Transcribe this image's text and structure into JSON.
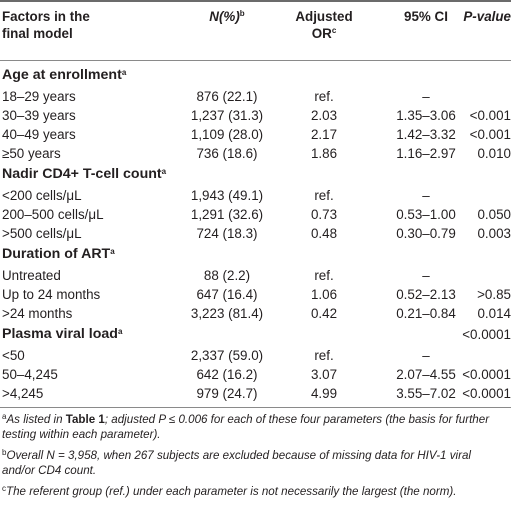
{
  "header": {
    "col0_line1": "Factors in the",
    "col0_line2": "final model",
    "col1": "N(%)",
    "col1_sup": "b",
    "col2_line1": "Adjusted",
    "col2_line2": "OR",
    "col2_sup": "c",
    "col3": "95% CI",
    "col4": "P-value"
  },
  "sections": [
    {
      "title": "Age at enrollment",
      "sup": "a",
      "p": "",
      "rows": [
        {
          "label": "18–29 years",
          "n": "876 (22.1)",
          "or": "ref.",
          "ci": "–",
          "p": ""
        },
        {
          "label": "30–39 years",
          "n": "1,237 (31.3)",
          "or": "2.03",
          "ci": "1.35–3.06",
          "p": "<0.001"
        },
        {
          "label": "40–49 years",
          "n": "1,109 (28.0)",
          "or": "2.17",
          "ci": "1.42–3.32",
          "p": "<0.001"
        },
        {
          "label": "≥50 years",
          "n": "736 (18.6)",
          "or": "1.86",
          "ci": "1.16–2.97",
          "p": "0.010"
        }
      ]
    },
    {
      "title": "Nadir CD4+ T-cell count",
      "sup": "a",
      "p": "",
      "rows": [
        {
          "label": "<200 cells/μL",
          "n": "1,943 (49.1)",
          "or": "ref.",
          "ci": "–",
          "p": ""
        },
        {
          "label": "200–500 cells/μL",
          "n": "1,291 (32.6)",
          "or": "0.73",
          "ci": "0.53–1.00",
          "p": "0.050"
        },
        {
          "label": ">500 cells/μL",
          "n": "724 (18.3)",
          "or": "0.48",
          "ci": "0.30–0.79",
          "p": "0.003"
        }
      ]
    },
    {
      "title": "Duration of ART",
      "sup": "a",
      "p": "",
      "rows": [
        {
          "label": "Untreated",
          "n": "88 (2.2)",
          "or": "ref.",
          "ci": "–",
          "p": ""
        },
        {
          "label": "Up to 24 months",
          "n": "647 (16.4)",
          "or": "1.06",
          "ci": "0.52–2.13",
          "p": ">0.85"
        },
        {
          "label": ">24 months",
          "n": "3,223 (81.4)",
          "or": "0.42",
          "ci": "0.21–0.84",
          "p": "0.014"
        }
      ]
    },
    {
      "title": "Plasma viral load",
      "sup": "a",
      "p": "<0.0001",
      "rows": [
        {
          "label": "<50",
          "n": "2,337 (59.0)",
          "or": "ref.",
          "ci": "–",
          "p": ""
        },
        {
          "label": "50–4,245",
          "n": "642 (16.2)",
          "or": "3.07",
          "ci": "2.07–4.55",
          "p": "<0.0001"
        },
        {
          "label": ">4,245",
          "n": "979 (24.7)",
          "or": "4.99",
          "ci": "3.55–7.02",
          "p": "<0.0001"
        }
      ]
    }
  ],
  "footnotes": {
    "a_marker": "a",
    "a_pre": "As listed in ",
    "a_bold": "Table 1",
    "a_post": "; adjusted P ≤ 0.006 for each of these four parameters (the basis for further testing within each parameter).",
    "b_marker": "b",
    "b_text": "Overall N = 3,958, when 267 subjects are excluded because of missing data for HIV-1 viral and/or CD4 count.",
    "c_marker": "c",
    "c_text": "The referent group (ref.) under each parameter is not necessarily the largest (the norm)."
  }
}
